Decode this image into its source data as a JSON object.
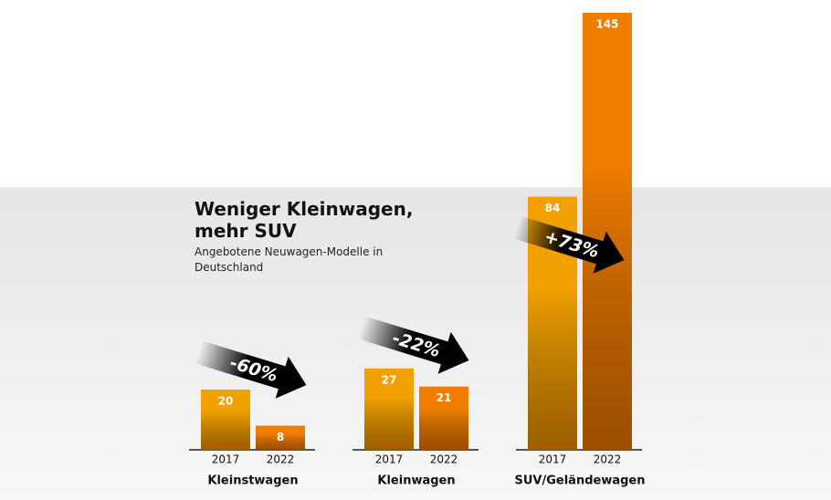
{
  "chart_data": {
    "type": "bar",
    "title": "Weniger Kleinwagen, mehr SUV",
    "subtitle": "Angebotene Neuwagen-Modelle in Deutschland",
    "categories": [
      "Kleinstwagen",
      "Kleinwagen",
      "SUV/Geländewagen"
    ],
    "series": [
      {
        "name": "2017",
        "color": "#f2a200",
        "values": [
          20,
          27,
          84
        ]
      },
      {
        "name": "2022",
        "color": "#ef7d00",
        "values": [
          8,
          21,
          145
        ]
      }
    ],
    "annotations": [
      "-60%",
      "-22%",
      "+73%"
    ]
  }
}
